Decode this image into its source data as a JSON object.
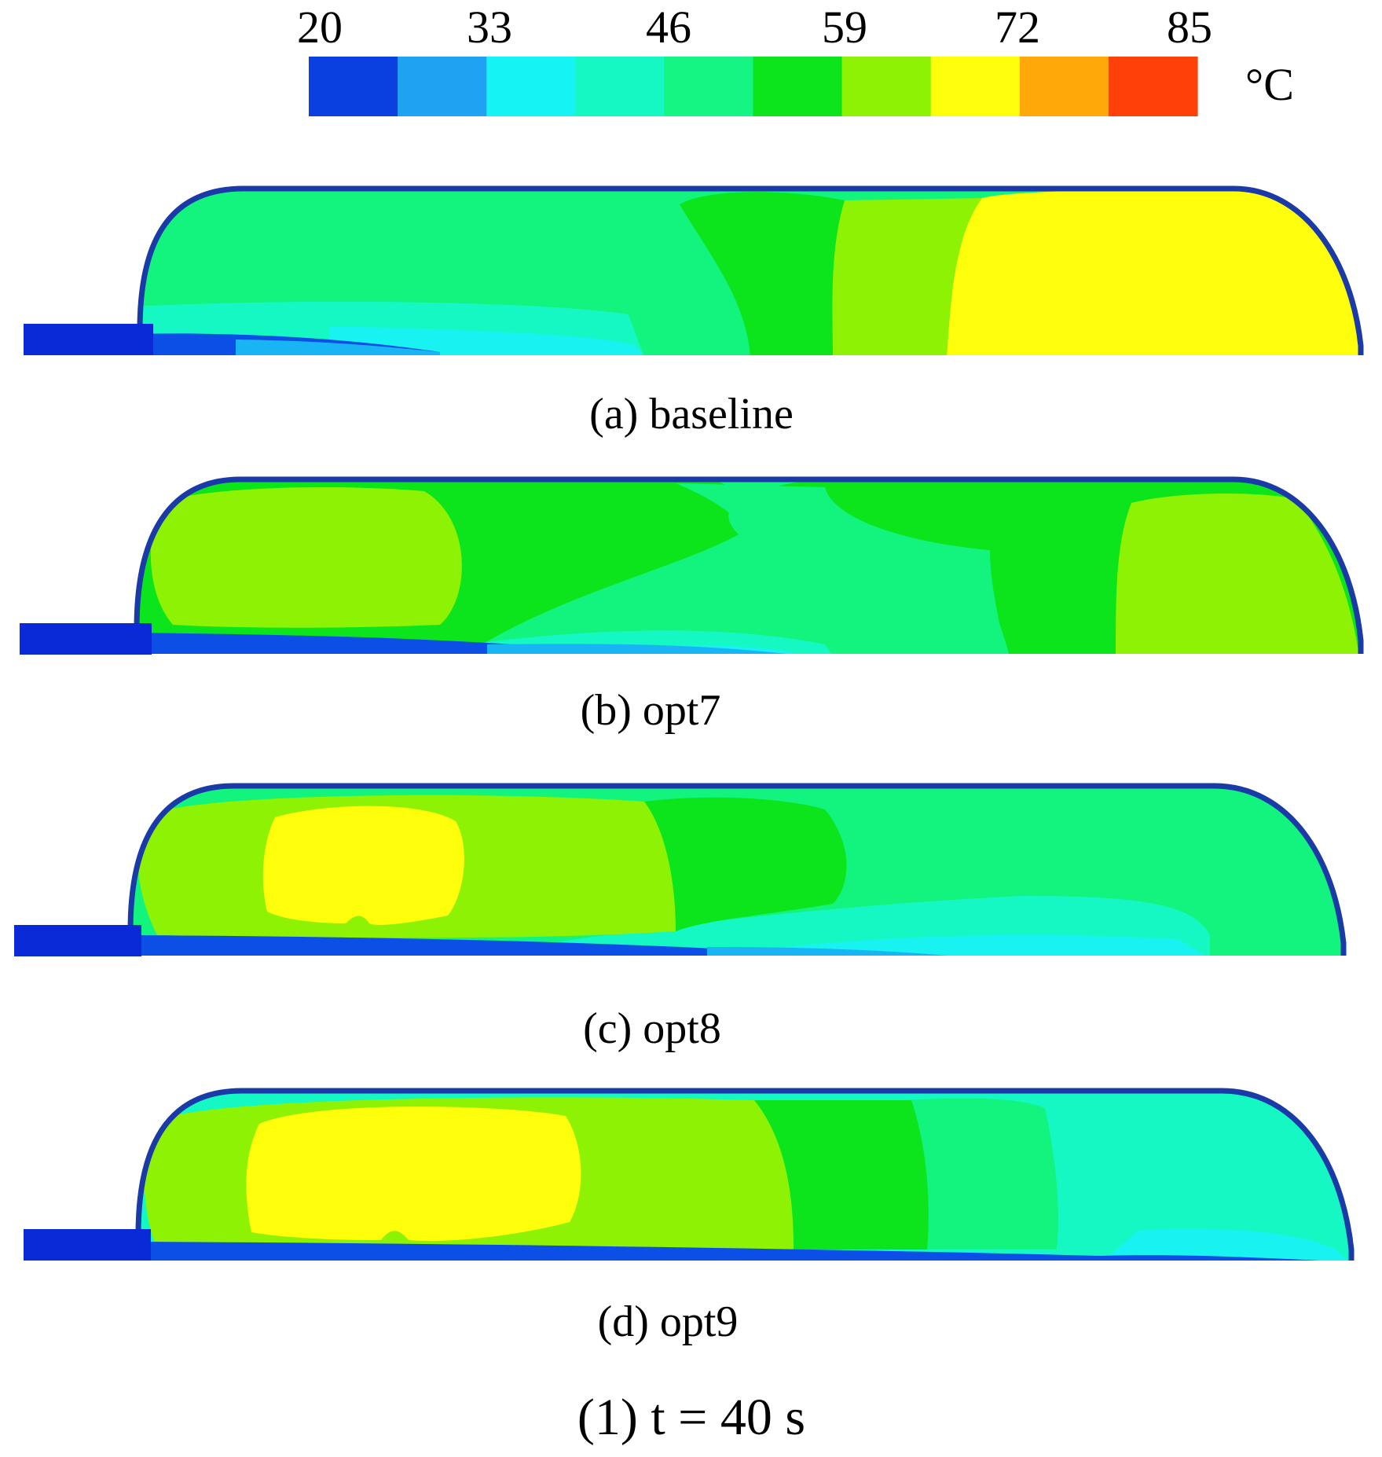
{
  "colorbar": {
    "ticks": [
      "20",
      "33",
      "46",
      "59",
      "72",
      "85"
    ],
    "unit": "°C",
    "colors": [
      "#0a3fe0",
      "#1fa2f2",
      "#16f3f4",
      "#16f8c4",
      "#14f584",
      "#0ce41c",
      "#8ef204",
      "#ffff0c",
      "#ffa80a",
      "#ff4008"
    ]
  },
  "panels": [
    {
      "label": "(a)  baseline"
    },
    {
      "label": "(b)  opt7"
    },
    {
      "label": "(c)  opt8"
    },
    {
      "label": "(d)  opt9"
    }
  ],
  "caption": "(1) t = 40 s",
  "palette": {
    "wall": "#1a3aa8",
    "inlet": "#0a2ad8",
    "bottom_layer": "#0c4fe6",
    "bottom_light": "#19b4f4",
    "cyan": "#18f2f0",
    "aqua": "#16f8c4",
    "mint": "#12f47e",
    "green": "#0ce41c",
    "lime": "#8ef204",
    "yellow": "#ffff0c"
  }
}
